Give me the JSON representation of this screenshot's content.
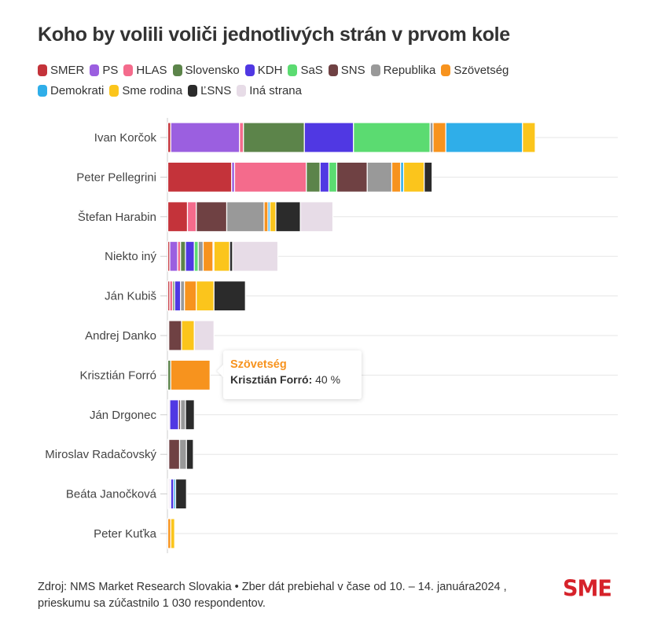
{
  "title": "Koho by volili voliči jednotlivých strán v prvom kole",
  "chart_data": {
    "type": "bar",
    "orientation": "horizontal",
    "stacked": true,
    "title": "Koho by volili voliči jednotlivých strán v prvom kole",
    "xlabel": "",
    "ylabel": "",
    "unit": "%",
    "grid": true,
    "legend_position": "top-left",
    "categories": [
      "Ivan Korčok",
      "Peter Pellegrini",
      "Štefan Harabin",
      "Niekto iný",
      "Ján Kubiš",
      "Andrej Danko",
      "Krisztián Forró",
      "Ján Drgonec",
      "Miroslav Radačovský",
      "Beáta Janočková",
      "Peter Kuťka"
    ],
    "series": [
      {
        "name": "SMER",
        "color": "#c4333a",
        "values": [
          3,
          65,
          20,
          2,
          2,
          1,
          0,
          1,
          0,
          1,
          0
        ]
      },
      {
        "name": "PS",
        "color": "#9b5fe0",
        "values": [
          70,
          3,
          0,
          8,
          0,
          0,
          0,
          1,
          1,
          1,
          0
        ]
      },
      {
        "name": "HLAS",
        "color": "#f46b8c",
        "values": [
          4,
          73,
          9,
          3,
          3,
          0,
          0,
          0,
          0,
          0,
          0
        ]
      },
      {
        "name": "Slovensko",
        "color": "#5c844a",
        "values": [
          62,
          14,
          0,
          5,
          2,
          0,
          3,
          0,
          0,
          1,
          0
        ]
      },
      {
        "name": "KDH",
        "color": "#5038e3",
        "values": [
          50,
          9,
          0,
          9,
          6,
          0,
          0,
          9,
          0,
          3,
          0
        ]
      },
      {
        "name": "SaS",
        "color": "#5bdb71",
        "values": [
          78,
          8,
          0,
          4,
          0,
          0,
          0,
          0,
          0,
          0,
          0
        ]
      },
      {
        "name": "SNS",
        "color": "#6f4143",
        "values": [
          0,
          31,
          31,
          0,
          0,
          13,
          0,
          2,
          11,
          0,
          0
        ]
      },
      {
        "name": "Republika",
        "color": "#999999",
        "values": [
          3,
          25,
          38,
          5,
          4,
          0,
          0,
          5,
          7,
          0,
          0
        ]
      },
      {
        "name": "Szövetség",
        "color": "#f7931e",
        "values": [
          13,
          9,
          4,
          10,
          12,
          0,
          40,
          0,
          0,
          0,
          3
        ]
      },
      {
        "name": "Demokrati",
        "color": "#2faee9",
        "values": [
          78,
          3,
          2,
          1,
          0,
          0,
          0,
          0,
          0,
          2,
          0
        ]
      },
      {
        "name": "Sme rodina",
        "color": "#fbc51c",
        "values": [
          13,
          21,
          6,
          16,
          18,
          13,
          0,
          0,
          0,
          0,
          4
        ]
      },
      {
        "name": "ĽSNS",
        "color": "#2b2b2b",
        "values": [
          0,
          8,
          25,
          3,
          32,
          0,
          0,
          9,
          7,
          11,
          0
        ]
      },
      {
        "name": "Iná strana",
        "color": "#e7dce7",
        "values": [
          0,
          0,
          33,
          46,
          0,
          20,
          0,
          0,
          0,
          0,
          0
        ]
      }
    ],
    "tooltip": {
      "series": "Szövetség",
      "category": "Krisztián Forró",
      "value_label": "40 %"
    }
  },
  "tooltip": {
    "series": "Szövetség",
    "category": "Krisztián Forró:",
    "value": "40 %"
  },
  "footer": {
    "line1": "Zdroj: NMS Market Research Slovakia • Zber dát prebiehal v čase od 10. – 14. januára2024 ,",
    "line2": "prieskumu sa zúčastnilo 1 030 respondentov."
  },
  "logo": "SME"
}
